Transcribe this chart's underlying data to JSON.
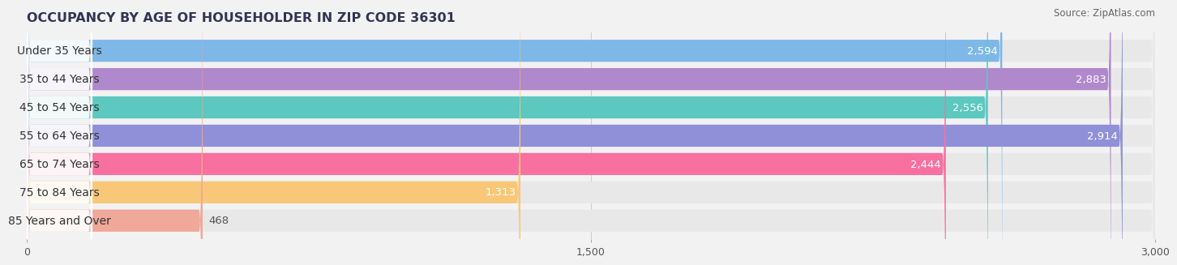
{
  "title": "OCCUPANCY BY AGE OF HOUSEHOLDER IN ZIP CODE 36301",
  "source": "Source: ZipAtlas.com",
  "categories": [
    "Under 35 Years",
    "35 to 44 Years",
    "45 to 54 Years",
    "55 to 64 Years",
    "65 to 74 Years",
    "75 to 84 Years",
    "85 Years and Over"
  ],
  "values": [
    2594,
    2883,
    2556,
    2914,
    2444,
    1313,
    468
  ],
  "bar_colors": [
    "#7EB8E8",
    "#B088CC",
    "#5CC8C0",
    "#9090D8",
    "#F870A0",
    "#F8C878",
    "#F0A898"
  ],
  "xlim_max": 3000,
  "xticks": [
    0,
    1500,
    3000
  ],
  "xtick_labels": [
    "0",
    "1,500",
    "3,000"
  ],
  "bg_color": "#F2F2F2",
  "bar_bg_color": "#E8E8E8",
  "title_color": "#333355",
  "label_color": "#333333",
  "value_color_inside": "#FFFFFF",
  "value_color_outside": "#555555",
  "title_fontsize": 11.5,
  "label_fontsize": 10,
  "value_fontsize": 9.5,
  "source_fontsize": 8.5
}
